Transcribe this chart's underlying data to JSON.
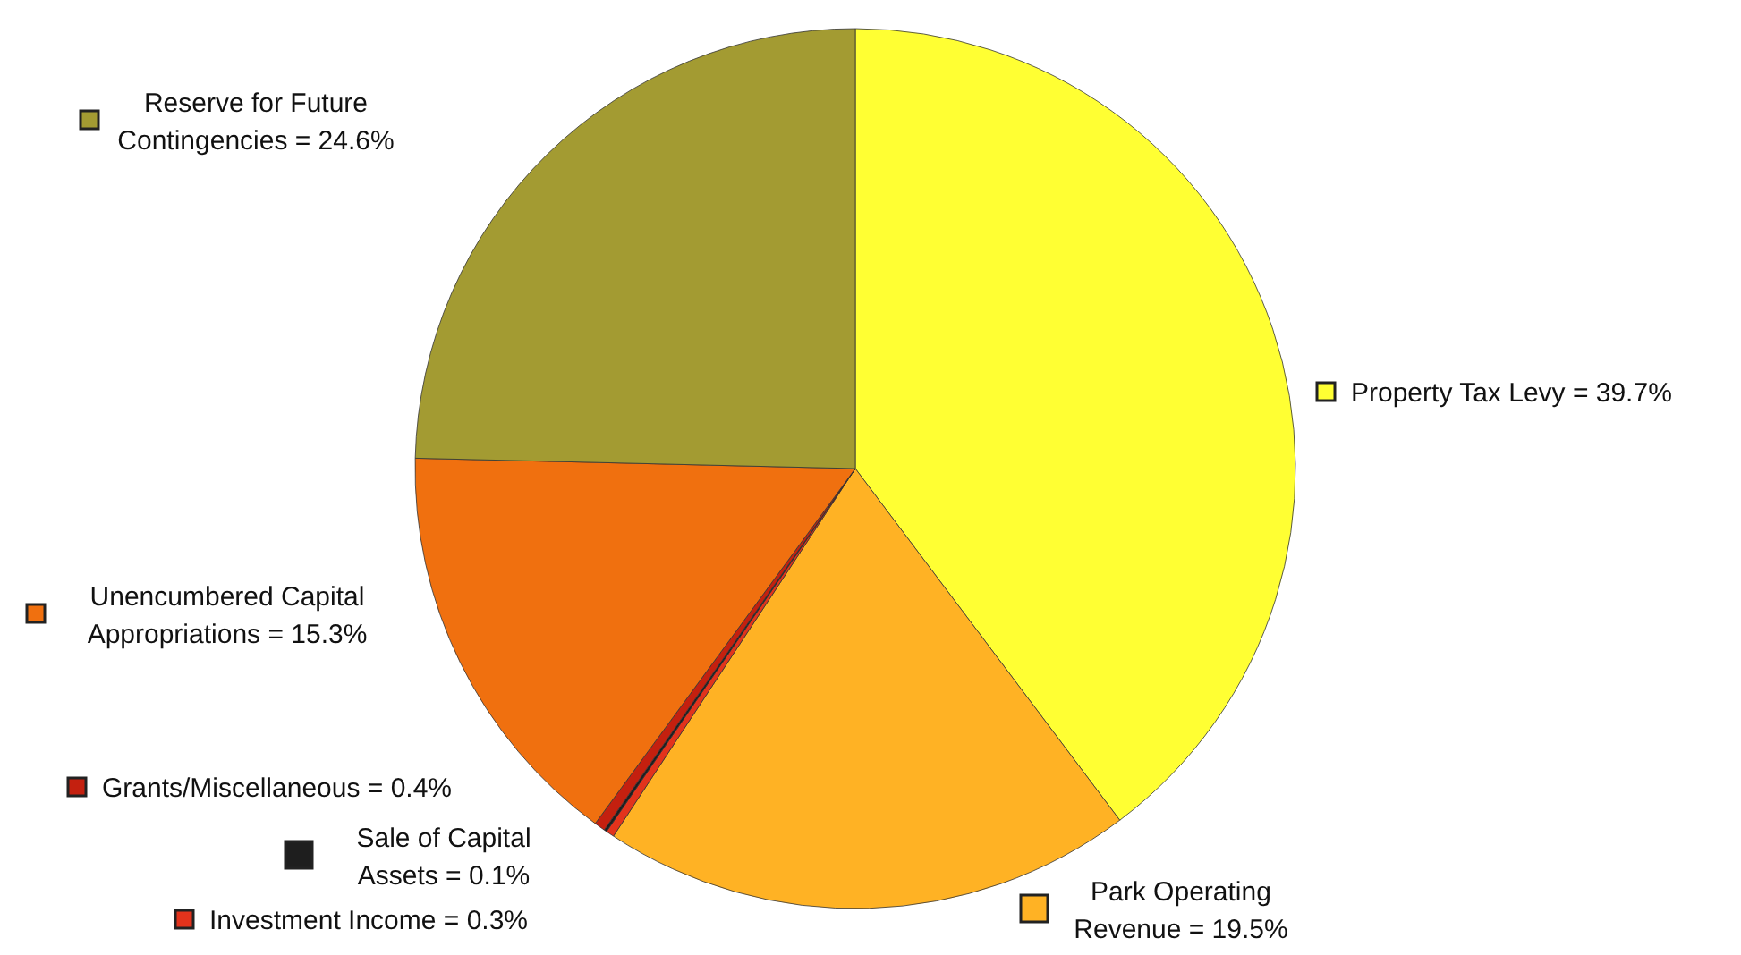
{
  "chart_data": {
    "type": "pie",
    "categories": [
      "Property Tax Levy = 39.7%",
      "Park Operating Revenue = 19.5%",
      "Investment Income = 0.3%",
      "Sale of Capital Assets = 0.1%",
      "Grants/Miscellaneous = 0.4%",
      "Unencumbered Capital Appropriations = 15.3%",
      "Reserve for Future Contingencies = 24.6%"
    ],
    "values": [
      39.7,
      19.5,
      0.3,
      0.1,
      0.4,
      15.3,
      24.6
    ],
    "legend": "left",
    "colors": [
      "#ffff33",
      "#ffb224",
      "#e2331c",
      "#1e1e1e",
      "#c4200f",
      "#f0700f",
      "#a39b32"
    ]
  }
}
